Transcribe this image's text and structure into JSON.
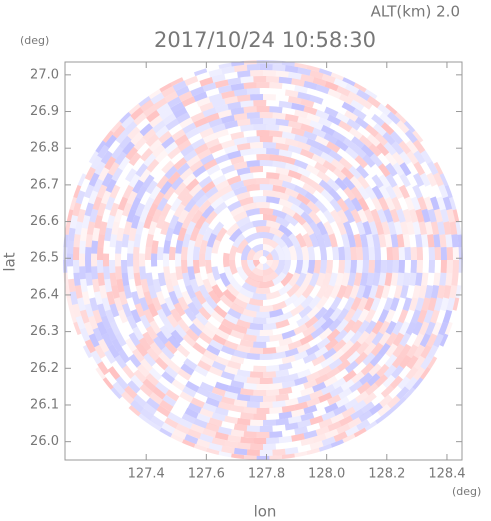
{
  "chart_data": {
    "type": "radar-ppi",
    "title": "2017/10/24 10:58:30",
    "subtitle": "ALT(km) 2.0",
    "x_label": "lon",
    "y_label": "lat",
    "x_unit": "(deg)",
    "y_unit": "(deg)",
    "xlim": [
      127.13,
      128.45
    ],
    "ylim": [
      25.95,
      27.035
    ],
    "xticks": [
      {
        "value": 127.4,
        "label": "127.4"
      },
      {
        "value": 127.6,
        "label": "127.6"
      },
      {
        "value": 127.8,
        "label": "127.8"
      },
      {
        "value": 128.0,
        "label": "128.0"
      },
      {
        "value": 128.2,
        "label": "128.2"
      },
      {
        "value": 128.4,
        "label": "128.4"
      }
    ],
    "yticks": [
      {
        "value": 26.0,
        "label": "26.0"
      },
      {
        "value": 26.1,
        "label": "26.1"
      },
      {
        "value": 26.2,
        "label": "26.2"
      },
      {
        "value": 26.3,
        "label": "26.3"
      },
      {
        "value": 26.4,
        "label": "26.4"
      },
      {
        "value": 26.5,
        "label": "26.5"
      },
      {
        "value": 26.6,
        "label": "26.6"
      },
      {
        "value": 26.7,
        "label": "26.7"
      },
      {
        "value": 26.8,
        "label": "26.8"
      },
      {
        "value": 26.9,
        "label": "26.9"
      },
      {
        "value": 27.0,
        "label": "27.0"
      }
    ]
  }
}
